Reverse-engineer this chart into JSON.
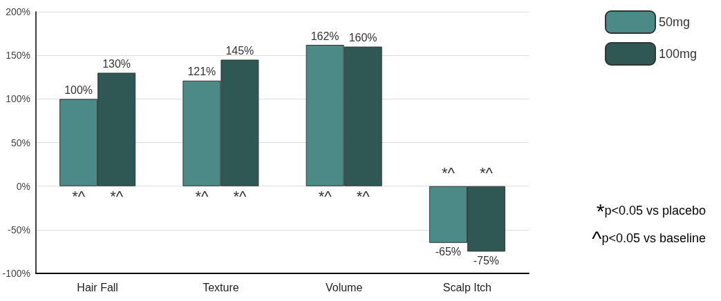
{
  "chart_data": {
    "type": "bar",
    "categories": [
      "Hair Fall",
      "Texture",
      "Volume",
      "Scalp Itch"
    ],
    "series": [
      {
        "name": "50mg",
        "color": "#4b8a87",
        "values": [
          100,
          121,
          162,
          -65
        ],
        "value_labels": [
          "100%",
          "121%",
          "162%",
          "-65%"
        ]
      },
      {
        "name": "100mg",
        "color": "#2f5855",
        "values": [
          130,
          145,
          160,
          -75
        ],
        "value_labels": [
          "130%",
          "145%",
          "160%",
          "-75%"
        ]
      }
    ],
    "ylim": [
      -100,
      200
    ],
    "yticks": [
      {
        "value": -100,
        "label": "-100%"
      },
      {
        "value": -50,
        "label": "-50%"
      },
      {
        "value": 0,
        "label": "0%"
      },
      {
        "value": 50,
        "label": "50%"
      },
      {
        "value": 100,
        "label": "100%"
      },
      {
        "value": 150,
        "label": "150%"
      },
      {
        "value": 200,
        "label": "200%"
      }
    ],
    "grid": "y",
    "legend": "top right",
    "annotations": [
      {
        "text": "*^",
        "x": "Hair Fall",
        "y": 0
      },
      {
        "text": "*^",
        "x": "Hair Fall",
        "y": 0
      },
      {
        "text": "*^",
        "x": "Texture",
        "y": 0
      },
      {
        "text": "*^",
        "x": "Texture",
        "y": 0
      },
      {
        "text": "*^",
        "x": "Volume",
        "y": 0
      },
      {
        "text": "*^",
        "x": "Volume",
        "y": 0
      },
      {
        "text": "*^",
        "x": "Scalp Itch",
        "y": 0
      },
      {
        "text": "*^",
        "x": "Scalp Itch",
        "y": 0
      },
      "*p<0.05 vs placebo",
      "^p<0.05 vs baseline"
    ]
  }
}
